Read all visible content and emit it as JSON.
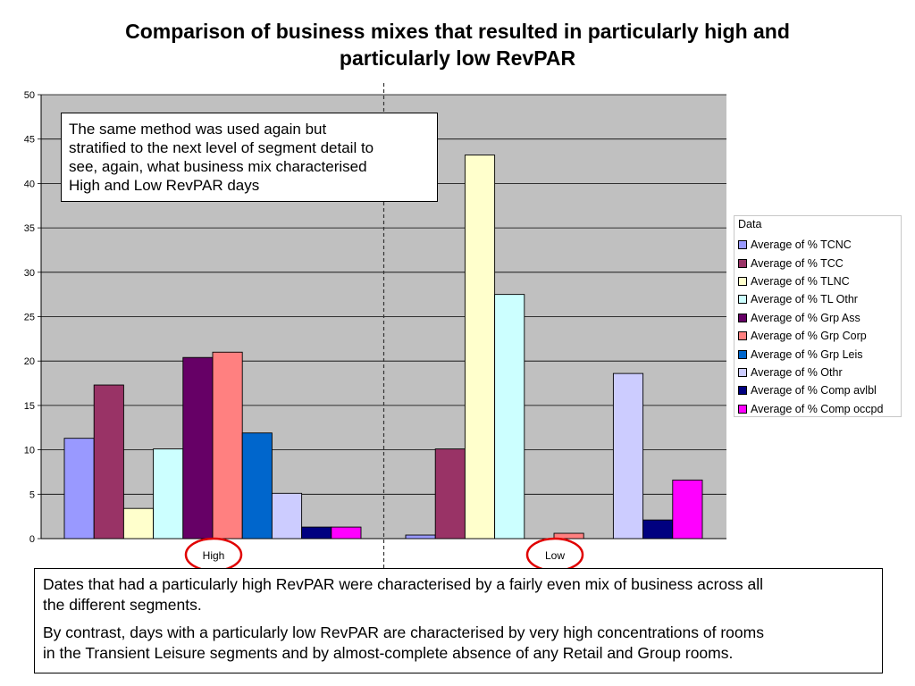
{
  "chart_data": {
    "type": "bar",
    "title_lines": [
      "Comparison of business mixes that resulted in particularly high and",
      "particularly low RevPAR"
    ],
    "categories": [
      "High",
      "Low"
    ],
    "ylim": [
      0,
      50
    ],
    "yticks": [
      0,
      5,
      10,
      15,
      20,
      25,
      30,
      35,
      40,
      45,
      50
    ],
    "grid": true,
    "legend_position": "right",
    "legend_title": "Data",
    "series": [
      {
        "name": "Average of % TCNC",
        "color": "#9999ff",
        "values": [
          11.3,
          0.4
        ]
      },
      {
        "name": "Average of % TCC",
        "color": "#993366",
        "values": [
          17.3,
          10.1
        ]
      },
      {
        "name": "Average of % TLNC",
        "color": "#ffffcc",
        "values": [
          3.4,
          43.2
        ]
      },
      {
        "name": "Average of % TL Othr",
        "color": "#ccffff",
        "values": [
          10.1,
          27.5
        ]
      },
      {
        "name": "Average of % Grp Ass",
        "color": "#660066",
        "values": [
          20.4,
          0
        ]
      },
      {
        "name": "Average of % Grp Corp",
        "color": "#ff8080",
        "values": [
          21.0,
          0.6
        ]
      },
      {
        "name": "Average of % Grp Leis",
        "color": "#0066cc",
        "values": [
          11.9,
          0
        ]
      },
      {
        "name": "Average of % Othr",
        "color": "#ccccff",
        "values": [
          5.1,
          18.6
        ]
      },
      {
        "name": "Average of % Comp avlbl",
        "color": "#000080",
        "values": [
          1.3,
          2.1
        ]
      },
      {
        "name": "Average of % Comp occpd",
        "color": "#ff00ff",
        "values": [
          1.3,
          6.6
        ]
      }
    ],
    "plot_background": "#c0c0c0",
    "highlight_color": "#e00000"
  },
  "callout": {
    "lines": [
      "The same method was used again but",
      "stratified to the next level of segment detail to",
      "see, again, what business mix characterised",
      "High and Low RevPAR days"
    ]
  },
  "notes": {
    "p1_lines": [
      "Dates that had a particularly high RevPAR were characterised by a fairly even mix of business across all",
      "the different segments."
    ],
    "p2_lines": [
      "By contrast, days with a particularly low RevPAR are characterised by very high concentrations of rooms",
      "in the Transient Leisure segments and by almost-complete absence of any Retail and Group rooms."
    ]
  }
}
